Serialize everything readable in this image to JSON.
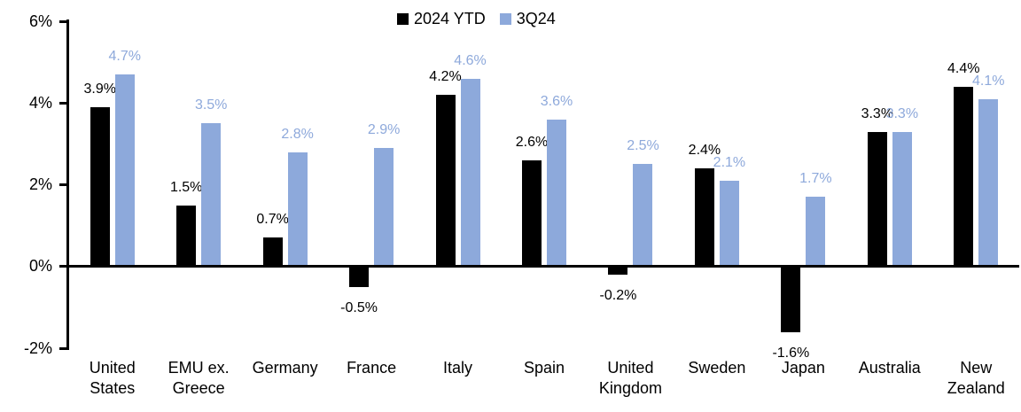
{
  "chart_data": {
    "type": "bar",
    "title": "",
    "categories": [
      "United States",
      "EMU ex. Greece",
      "Germany",
      "France",
      "Italy",
      "Spain",
      "United Kingdom",
      "Sweden",
      "Japan",
      "Australia",
      "New Zealand"
    ],
    "category_lines": [
      [
        "United",
        "States"
      ],
      [
        "EMU ex.",
        "Greece"
      ],
      [
        "Germany"
      ],
      [
        "France"
      ],
      [
        "Italy"
      ],
      [
        "Spain"
      ],
      [
        "United",
        "Kingdom"
      ],
      [
        "Sweden"
      ],
      [
        "Japan"
      ],
      [
        "Australia"
      ],
      [
        "New",
        "Zealand"
      ]
    ],
    "series": [
      {
        "name": "2024 YTD",
        "color": "#000000",
        "label_color": "#000000",
        "values": [
          3.9,
          1.5,
          0.7,
          -0.5,
          4.2,
          2.6,
          -0.2,
          2.4,
          -1.6,
          3.3,
          4.4
        ],
        "labels": [
          "3.9%",
          "1.5%",
          "0.7%",
          "-0.5%",
          "4.2%",
          "2.6%",
          "-0.2%",
          "2.4%",
          "-1.6%",
          "3.3%",
          "4.4%"
        ]
      },
      {
        "name": "3Q24",
        "color": "#8DA9DB",
        "label_color": "#8EA9DB",
        "values": [
          4.7,
          3.5,
          2.8,
          2.9,
          4.6,
          3.6,
          2.5,
          2.1,
          1.7,
          3.3,
          4.1
        ],
        "labels": [
          "4.7%",
          "3.5%",
          "2.8%",
          "2.9%",
          "4.6%",
          "3.6%",
          "2.5%",
          "2.1%",
          "1.7%",
          "3.3%",
          "4.1%"
        ]
      }
    ],
    "y_axis": {
      "min": -2,
      "max": 6,
      "tick_values": [
        6,
        4,
        2,
        0,
        -2
      ],
      "tick_labels": [
        "6%",
        "4%",
        "2%",
        "0%",
        "-2%"
      ]
    },
    "legend_position": "top-center",
    "grid": false,
    "axis_color": "#000000",
    "background_color": "#ffffff"
  }
}
